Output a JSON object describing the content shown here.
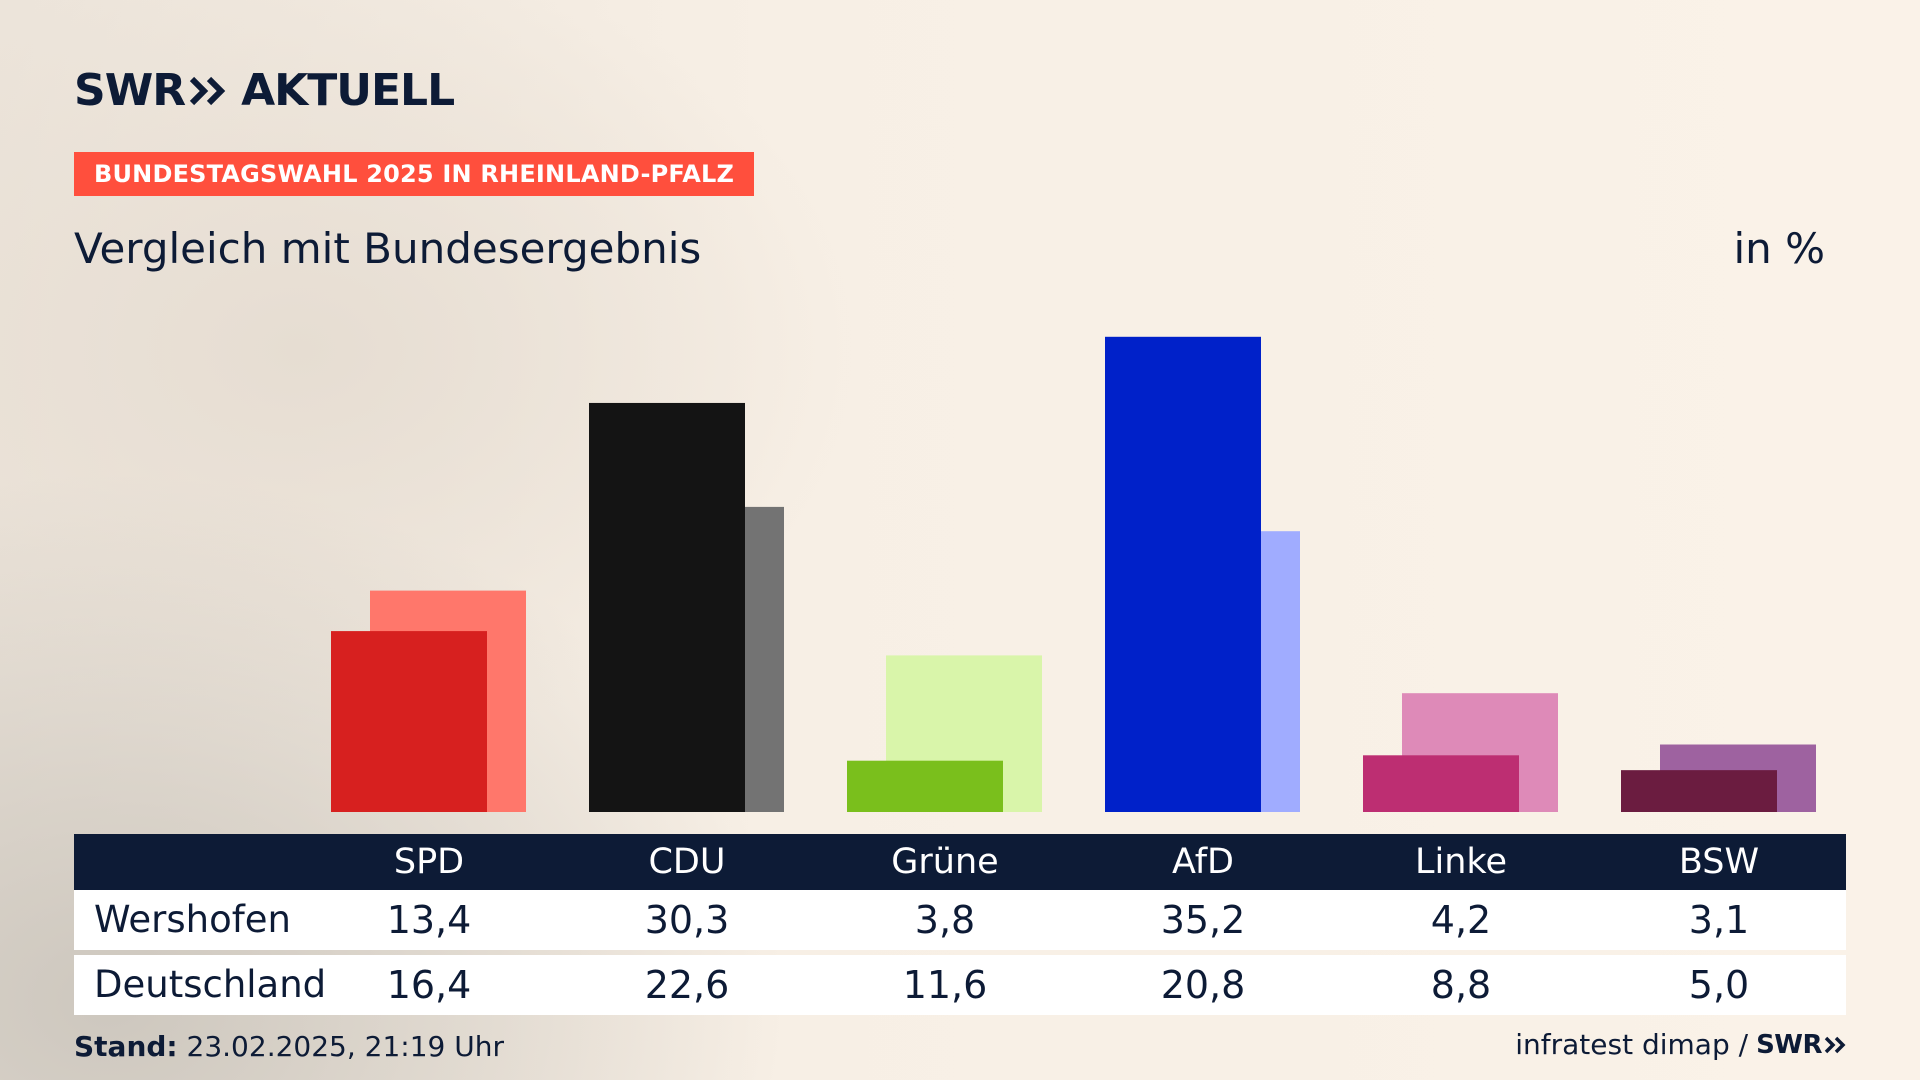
{
  "brand": {
    "name": "SWR",
    "suffix": "AKTUELL"
  },
  "tag": "BUNDESTAGSWAHL 2025 IN RHEINLAND-PFALZ",
  "title": "Vergleich mit Bundesergebnis",
  "unit": "in %",
  "chart_data": {
    "type": "bar",
    "categories": [
      "SPD",
      "CDU",
      "Grüne",
      "AfD",
      "Linke",
      "BSW"
    ],
    "series": [
      {
        "name": "Wershofen",
        "values": [
          13.4,
          30.3,
          3.8,
          35.2,
          4.2,
          3.1
        ],
        "display": [
          "13,4",
          "30,3",
          "3,8",
          "35,2",
          "4,2",
          "3,1"
        ]
      },
      {
        "name": "Deutschland",
        "values": [
          16.4,
          22.6,
          11.6,
          20.8,
          8.8,
          5.0
        ],
        "display": [
          "16,4",
          "22,6",
          "11,6",
          "20,8",
          "8,8",
          "5,0"
        ]
      }
    ],
    "colors_primary": [
      "#d7201f",
      "#141414",
      "#7abf1c",
      "#0021c9",
      "#bd2e72",
      "#6b1c40"
    ],
    "colors_secondary": [
      "#ff776b",
      "#737373",
      "#d9f5aa",
      "#a0acff",
      "#de8ab8",
      "#9e62a0"
    ],
    "ylim": [
      0,
      40
    ]
  },
  "footer": {
    "stand_label": "Stand:",
    "stand_value": "23.02.2025, 21:19 Uhr",
    "source": "infratest dimap /",
    "source_brand": "SWR"
  }
}
